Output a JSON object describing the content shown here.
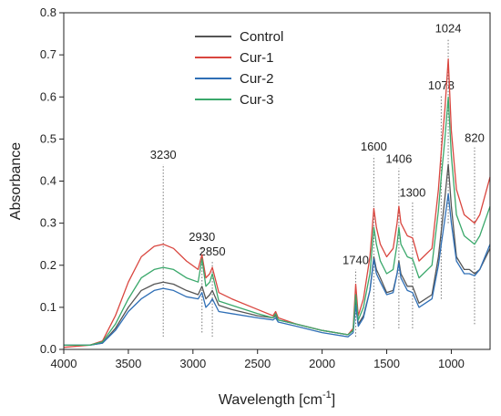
{
  "chart_data": {
    "type": "line",
    "xlabel": "Wavelength [cm",
    "xlabel_sup": "-1",
    "xlabel_end": "]",
    "ylabel": "Absorbance",
    "xlim": [
      4000,
      700
    ],
    "ylim": [
      0,
      0.8
    ],
    "x_ticks": [
      4000,
      3500,
      3000,
      2500,
      2000,
      1500,
      1000
    ],
    "y_ticks": [
      0.0,
      0.1,
      0.2,
      0.3,
      0.4,
      0.5,
      0.6,
      0.7,
      0.8
    ],
    "x_tick_labels": [
      "4000",
      "3500",
      "3000",
      "2500",
      "2000",
      "1500",
      "1000"
    ],
    "y_tick_labels": [
      "0.0",
      "0.1",
      "0.2",
      "0.3",
      "0.4",
      "0.5",
      "0.6",
      "0.7",
      "0.8"
    ],
    "grid": false,
    "legend_position": "top-center",
    "series": [
      {
        "name": "Control",
        "color": "#555555",
        "points": [
          [
            4000,
            0.01
          ],
          [
            3800,
            0.01
          ],
          [
            3700,
            0.015
          ],
          [
            3600,
            0.05
          ],
          [
            3500,
            0.1
          ],
          [
            3400,
            0.14
          ],
          [
            3300,
            0.155
          ],
          [
            3230,
            0.16
          ],
          [
            3150,
            0.155
          ],
          [
            3050,
            0.14
          ],
          [
            2960,
            0.13
          ],
          [
            2930,
            0.15
          ],
          [
            2900,
            0.12
          ],
          [
            2870,
            0.13
          ],
          [
            2850,
            0.14
          ],
          [
            2800,
            0.105
          ],
          [
            2700,
            0.095
          ],
          [
            2500,
            0.08
          ],
          [
            2380,
            0.075
          ],
          [
            2360,
            0.08
          ],
          [
            2340,
            0.07
          ],
          [
            2200,
            0.06
          ],
          [
            2000,
            0.045
          ],
          [
            1800,
            0.035
          ],
          [
            1760,
            0.045
          ],
          [
            1740,
            0.115
          ],
          [
            1720,
            0.06
          ],
          [
            1680,
            0.08
          ],
          [
            1630,
            0.14
          ],
          [
            1600,
            0.22
          ],
          [
            1580,
            0.19
          ],
          [
            1550,
            0.17
          ],
          [
            1500,
            0.135
          ],
          [
            1450,
            0.14
          ],
          [
            1420,
            0.18
          ],
          [
            1406,
            0.21
          ],
          [
            1390,
            0.18
          ],
          [
            1340,
            0.15
          ],
          [
            1300,
            0.15
          ],
          [
            1250,
            0.11
          ],
          [
            1150,
            0.13
          ],
          [
            1100,
            0.22
          ],
          [
            1078,
            0.28
          ],
          [
            1050,
            0.36
          ],
          [
            1024,
            0.44
          ],
          [
            1000,
            0.34
          ],
          [
            960,
            0.22
          ],
          [
            900,
            0.19
          ],
          [
            860,
            0.19
          ],
          [
            820,
            0.18
          ],
          [
            780,
            0.19
          ],
          [
            700,
            0.24
          ]
        ]
      },
      {
        "name": "Cur-1",
        "color": "#d9463f",
        "points": [
          [
            4000,
            0.005
          ],
          [
            3800,
            0.01
          ],
          [
            3700,
            0.02
          ],
          [
            3600,
            0.08
          ],
          [
            3500,
            0.16
          ],
          [
            3400,
            0.22
          ],
          [
            3300,
            0.245
          ],
          [
            3230,
            0.25
          ],
          [
            3150,
            0.24
          ],
          [
            3050,
            0.21
          ],
          [
            2960,
            0.19
          ],
          [
            2930,
            0.225
          ],
          [
            2900,
            0.17
          ],
          [
            2870,
            0.18
          ],
          [
            2850,
            0.195
          ],
          [
            2800,
            0.135
          ],
          [
            2700,
            0.12
          ],
          [
            2500,
            0.095
          ],
          [
            2380,
            0.08
          ],
          [
            2360,
            0.09
          ],
          [
            2340,
            0.075
          ],
          [
            2200,
            0.06
          ],
          [
            2000,
            0.045
          ],
          [
            1800,
            0.035
          ],
          [
            1760,
            0.05
          ],
          [
            1740,
            0.155
          ],
          [
            1720,
            0.08
          ],
          [
            1680,
            0.12
          ],
          [
            1630,
            0.22
          ],
          [
            1600,
            0.335
          ],
          [
            1580,
            0.29
          ],
          [
            1550,
            0.25
          ],
          [
            1500,
            0.22
          ],
          [
            1450,
            0.24
          ],
          [
            1420,
            0.3
          ],
          [
            1406,
            0.34
          ],
          [
            1390,
            0.3
          ],
          [
            1340,
            0.27
          ],
          [
            1300,
            0.265
          ],
          [
            1250,
            0.21
          ],
          [
            1150,
            0.24
          ],
          [
            1100,
            0.38
          ],
          [
            1078,
            0.47
          ],
          [
            1050,
            0.57
          ],
          [
            1024,
            0.69
          ],
          [
            1000,
            0.52
          ],
          [
            960,
            0.38
          ],
          [
            900,
            0.32
          ],
          [
            860,
            0.31
          ],
          [
            820,
            0.3
          ],
          [
            780,
            0.32
          ],
          [
            700,
            0.41
          ]
        ]
      },
      {
        "name": "Cur-2",
        "color": "#2f6fb6",
        "points": [
          [
            4000,
            0.01
          ],
          [
            3800,
            0.01
          ],
          [
            3700,
            0.015
          ],
          [
            3600,
            0.045
          ],
          [
            3500,
            0.09
          ],
          [
            3400,
            0.12
          ],
          [
            3300,
            0.14
          ],
          [
            3230,
            0.145
          ],
          [
            3150,
            0.14
          ],
          [
            3050,
            0.125
          ],
          [
            2960,
            0.12
          ],
          [
            2930,
            0.135
          ],
          [
            2900,
            0.1
          ],
          [
            2870,
            0.11
          ],
          [
            2850,
            0.12
          ],
          [
            2800,
            0.09
          ],
          [
            2700,
            0.085
          ],
          [
            2500,
            0.075
          ],
          [
            2380,
            0.07
          ],
          [
            2360,
            0.075
          ],
          [
            2340,
            0.065
          ],
          [
            2200,
            0.055
          ],
          [
            2000,
            0.04
          ],
          [
            1800,
            0.03
          ],
          [
            1760,
            0.04
          ],
          [
            1740,
            0.105
          ],
          [
            1720,
            0.055
          ],
          [
            1680,
            0.075
          ],
          [
            1630,
            0.14
          ],
          [
            1600,
            0.215
          ],
          [
            1580,
            0.18
          ],
          [
            1550,
            0.16
          ],
          [
            1500,
            0.13
          ],
          [
            1450,
            0.135
          ],
          [
            1420,
            0.18
          ],
          [
            1406,
            0.205
          ],
          [
            1390,
            0.17
          ],
          [
            1340,
            0.14
          ],
          [
            1300,
            0.135
          ],
          [
            1250,
            0.1
          ],
          [
            1150,
            0.12
          ],
          [
            1100,
            0.2
          ],
          [
            1078,
            0.25
          ],
          [
            1050,
            0.31
          ],
          [
            1024,
            0.37
          ],
          [
            1000,
            0.3
          ],
          [
            960,
            0.21
          ],
          [
            900,
            0.18
          ],
          [
            860,
            0.18
          ],
          [
            820,
            0.175
          ],
          [
            780,
            0.19
          ],
          [
            700,
            0.25
          ]
        ]
      },
      {
        "name": "Cur-3",
        "color": "#3aa86b",
        "points": [
          [
            4000,
            0.01
          ],
          [
            3800,
            0.01
          ],
          [
            3700,
            0.018
          ],
          [
            3600,
            0.06
          ],
          [
            3500,
            0.12
          ],
          [
            3400,
            0.17
          ],
          [
            3300,
            0.19
          ],
          [
            3230,
            0.195
          ],
          [
            3150,
            0.19
          ],
          [
            3050,
            0.17
          ],
          [
            2960,
            0.16
          ],
          [
            2930,
            0.215
          ],
          [
            2900,
            0.15
          ],
          [
            2870,
            0.16
          ],
          [
            2850,
            0.18
          ],
          [
            2800,
            0.115
          ],
          [
            2700,
            0.105
          ],
          [
            2500,
            0.085
          ],
          [
            2380,
            0.075
          ],
          [
            2360,
            0.085
          ],
          [
            2340,
            0.07
          ],
          [
            2200,
            0.06
          ],
          [
            2000,
            0.045
          ],
          [
            1800,
            0.035
          ],
          [
            1760,
            0.045
          ],
          [
            1740,
            0.13
          ],
          [
            1720,
            0.07
          ],
          [
            1680,
            0.1
          ],
          [
            1630,
            0.18
          ],
          [
            1600,
            0.29
          ],
          [
            1580,
            0.25
          ],
          [
            1550,
            0.21
          ],
          [
            1500,
            0.18
          ],
          [
            1450,
            0.19
          ],
          [
            1420,
            0.25
          ],
          [
            1406,
            0.29
          ],
          [
            1390,
            0.25
          ],
          [
            1340,
            0.22
          ],
          [
            1300,
            0.215
          ],
          [
            1250,
            0.17
          ],
          [
            1150,
            0.2
          ],
          [
            1100,
            0.33
          ],
          [
            1078,
            0.41
          ],
          [
            1050,
            0.5
          ],
          [
            1024,
            0.6
          ],
          [
            1000,
            0.46
          ],
          [
            960,
            0.32
          ],
          [
            900,
            0.27
          ],
          [
            860,
            0.26
          ],
          [
            820,
            0.25
          ],
          [
            780,
            0.27
          ],
          [
            700,
            0.34
          ]
        ]
      }
    ],
    "annotations": [
      {
        "label": "3230",
        "x": 3230,
        "y_from": 0.03,
        "y_to": 0.44
      },
      {
        "label": "2930",
        "x": 2930,
        "y_from": 0.04,
        "y_to": 0.245
      },
      {
        "label": "2850",
        "x": 2850,
        "y_from": 0.03,
        "y_to": 0.21
      },
      {
        "label": "1740",
        "x": 1740,
        "y_from": 0.03,
        "y_to": 0.19
      },
      {
        "label": "1600",
        "x": 1600,
        "y_from": 0.05,
        "y_to": 0.46
      },
      {
        "label": "1406",
        "x": 1406,
        "y_from": 0.05,
        "y_to": 0.43
      },
      {
        "label": "1300",
        "x": 1300,
        "y_from": 0.05,
        "y_to": 0.35
      },
      {
        "label": "1078",
        "x": 1078,
        "y_from": 0.12,
        "y_to": 0.605
      },
      {
        "label": "1024",
        "x": 1024,
        "y_from": 0.3,
        "y_to": 0.74
      },
      {
        "label": "820",
        "x": 820,
        "y_from": 0.06,
        "y_to": 0.48
      }
    ]
  }
}
